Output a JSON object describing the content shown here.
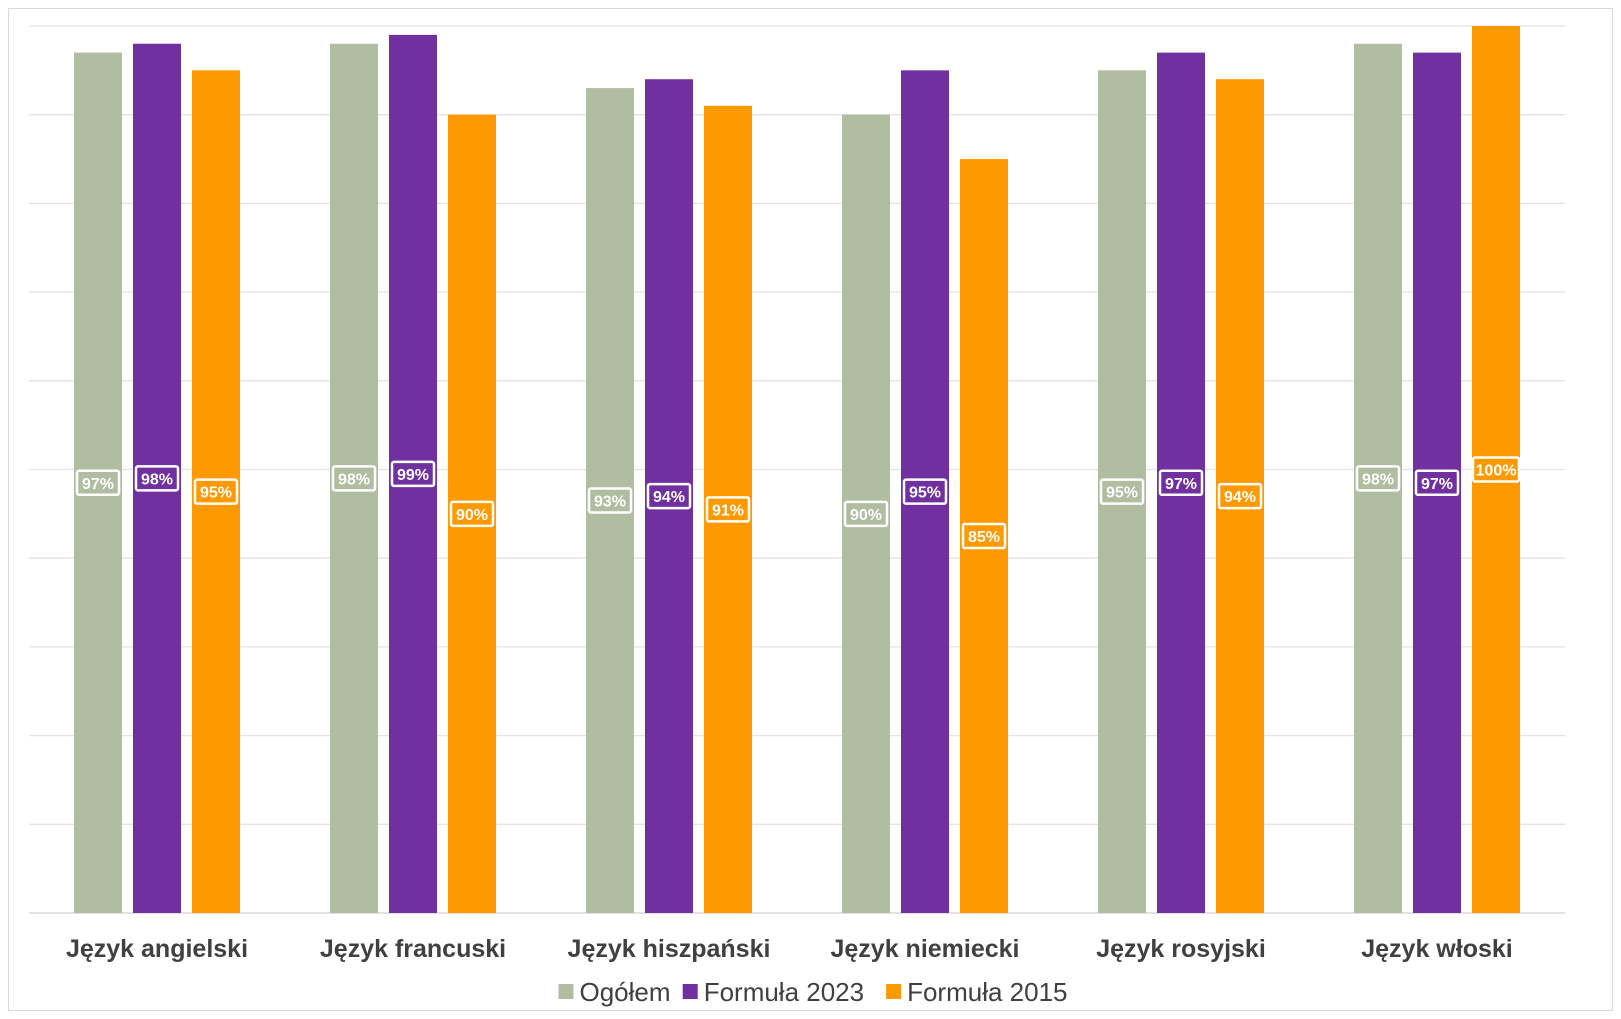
{
  "chart_data": {
    "type": "bar",
    "title": "",
    "xlabel": "",
    "ylabel": "",
    "ylim": [
      0,
      100
    ],
    "grid": true,
    "legend_position": "bottom",
    "categories": [
      "Język angielski",
      "Język francuski",
      "Język hiszpański",
      "Język niemiecki",
      "Język rosyjski",
      "Język włoski"
    ],
    "series": [
      {
        "name": "Ogółem",
        "color": "#b1bda0",
        "values": [
          97,
          98,
          93,
          90,
          95,
          98
        ],
        "labels": [
          "97%",
          "98%",
          "93%",
          "90%",
          "95%",
          "98%"
        ]
      },
      {
        "name": "Formuła 2023",
        "color": "#7030a0",
        "values": [
          98,
          99,
          94,
          95,
          97,
          97
        ],
        "labels": [
          "98%",
          "99%",
          "94%",
          "95%",
          "97%",
          "97%"
        ]
      },
      {
        "name": "Formuła 2015",
        "color": "#ff9900",
        "values": [
          95,
          90,
          91,
          85,
          94,
          100
        ],
        "labels": [
          "95%",
          "90%",
          "91%",
          "85%",
          "94%",
          "100%"
        ]
      }
    ]
  }
}
